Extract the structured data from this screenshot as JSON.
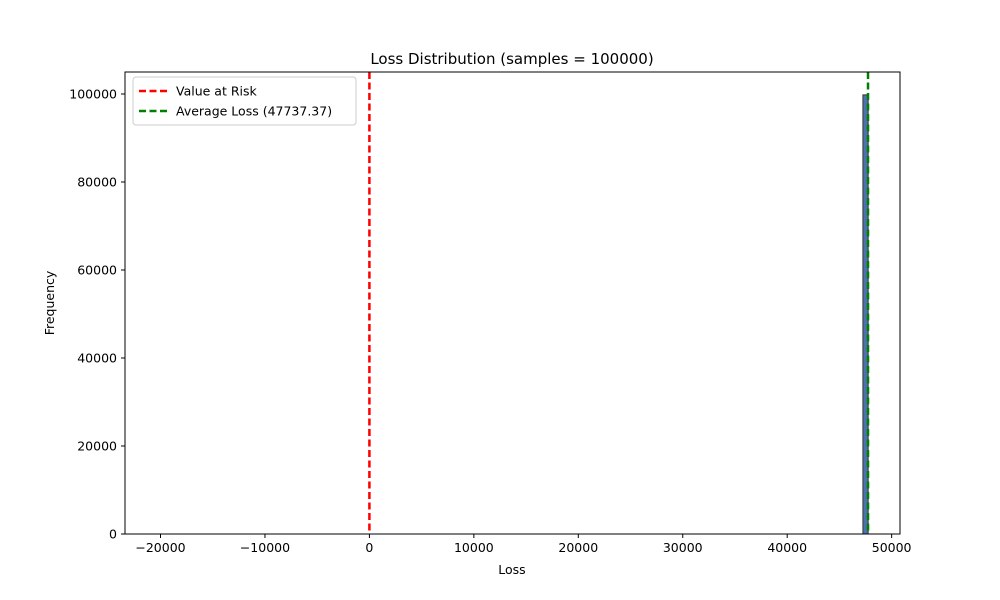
{
  "chart_data": {
    "type": "bar",
    "title": "Loss Distribution (samples = 100000)",
    "xlabel": "Loss",
    "ylabel": "Frequency",
    "xlim": [
      -23400,
      50800
    ],
    "ylim": [
      0,
      105000
    ],
    "x_ticks": [
      -20000,
      -10000,
      0,
      10000,
      20000,
      30000,
      40000,
      50000
    ],
    "x_tick_labels": [
      "−20000",
      "−10000",
      "0",
      "10000",
      "20000",
      "30000",
      "40000",
      "50000"
    ],
    "y_ticks": [
      0,
      20000,
      40000,
      60000,
      80000,
      100000
    ],
    "y_tick_labels": [
      "0",
      "20000",
      "40000",
      "60000",
      "80000",
      "100000"
    ],
    "grid": false,
    "bars": [
      {
        "x0": 47250,
        "x1": 47750,
        "value": 99800
      }
    ],
    "bar_color": "#4c72b0",
    "bar_edge_color": "#333333",
    "vlines": [
      {
        "name": "Value at Risk",
        "x": 0,
        "color": "#ff0000"
      },
      {
        "name": "Average Loss (47737.37)",
        "x": 47737.37,
        "color": "#008000"
      }
    ],
    "legend": {
      "placement": "upper-left",
      "entries": [
        "Value at Risk",
        "Average Loss (47737.37)"
      ]
    }
  }
}
